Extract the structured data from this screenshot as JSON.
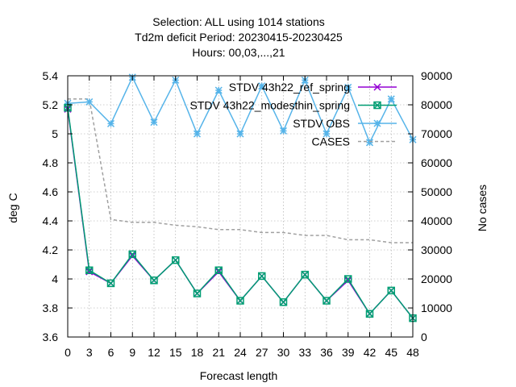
{
  "chart_data": {
    "type": "line",
    "title_lines": [
      "Selection: ALL using  1014 stations",
      "Td2m deficit   Period: 20230415-20230425",
      "Hours:  00,03,...,21"
    ],
    "xlabel": "Forecast length",
    "ylabel": "deg C",
    "y2label": "No cases",
    "x": [
      0,
      3,
      6,
      9,
      12,
      15,
      18,
      21,
      24,
      27,
      30,
      33,
      36,
      39,
      42,
      45,
      48
    ],
    "xlim": [
      0,
      48
    ],
    "ylim": [
      3.6,
      5.4
    ],
    "y2lim": [
      0,
      90000
    ],
    "x_ticks": [
      "0",
      "3",
      "6",
      "9",
      "12",
      "15",
      "18",
      "21",
      "24",
      "27",
      "30",
      "33",
      "36",
      "39",
      "42",
      "45",
      "48"
    ],
    "y_ticks": [
      "3.6",
      "3.8",
      "4",
      "4.2",
      "4.4",
      "4.6",
      "4.8",
      "5",
      "5.2",
      "5.4"
    ],
    "y2_ticks": [
      "0",
      "10000",
      "20000",
      "30000",
      "40000",
      "50000",
      "60000",
      "70000",
      "80000",
      "90000"
    ],
    "grid": true,
    "legend_position": "top-right",
    "series": [
      {
        "name": "STDV 43h22_ref_spring",
        "color": "#9400d3",
        "marker": "x",
        "axis": "y1",
        "values": [
          5.17,
          4.05,
          3.97,
          4.16,
          3.99,
          4.13,
          3.9,
          4.05,
          3.85,
          4.02,
          3.84,
          4.03,
          3.85,
          3.99,
          3.76,
          3.92,
          3.73
        ]
      },
      {
        "name": "STDV 43h22_modesthin_spring",
        "color": "#009e73",
        "marker": "xbox",
        "axis": "y1",
        "values": [
          5.18,
          4.06,
          3.97,
          4.17,
          3.99,
          4.13,
          3.9,
          4.06,
          3.85,
          4.02,
          3.84,
          4.03,
          3.85,
          4.0,
          3.76,
          3.92,
          3.73
        ]
      },
      {
        "name": "STDV OBS",
        "color": "#56b4e9",
        "marker": "star",
        "axis": "y1",
        "values": [
          5.21,
          5.22,
          5.07,
          5.39,
          5.08,
          5.37,
          5.0,
          5.3,
          5.0,
          5.33,
          5.02,
          5.37,
          5.0,
          5.32,
          4.94,
          5.24,
          4.96
        ]
      },
      {
        "name": "CASES",
        "color": "#a0a0a0",
        "marker": "none",
        "dashed": true,
        "axis": "y2",
        "values": [
          82000,
          82000,
          40500,
          39500,
          39500,
          38500,
          38000,
          37000,
          37000,
          36000,
          36000,
          35000,
          35000,
          33500,
          33500,
          32500,
          32500
        ]
      }
    ]
  }
}
